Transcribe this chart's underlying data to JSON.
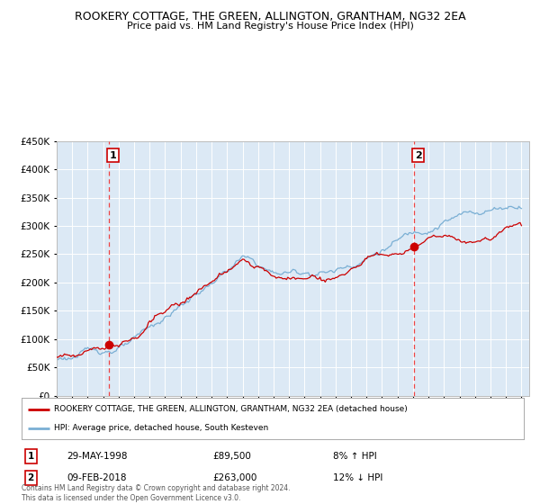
{
  "title": "ROOKERY COTTAGE, THE GREEN, ALLINGTON, GRANTHAM, NG32 2EA",
  "subtitle": "Price paid vs. HM Land Registry's House Price Index (HPI)",
  "bg_color": "#dce9f5",
  "fig_bg_color": "#ffffff",
  "red_line_color": "#cc0000",
  "blue_line_color": "#7aafd4",
  "dashed_line_color": "#ee4444",
  "dot_color": "#cc0000",
  "ylim": [
    0,
    450000
  ],
  "yticks": [
    0,
    50000,
    100000,
    150000,
    200000,
    250000,
    300000,
    350000,
    400000,
    450000
  ],
  "ytick_labels": [
    "£0",
    "£50K",
    "£100K",
    "£150K",
    "£200K",
    "£250K",
    "£300K",
    "£350K",
    "£400K",
    "£450K"
  ],
  "x_start_year": 1995,
  "x_end_year": 2025,
  "sale1_year": 1998.38,
  "sale1_price": 89500,
  "sale2_year": 2018.09,
  "sale2_price": 263000,
  "legend_house": "ROOKERY COTTAGE, THE GREEN, ALLINGTON, GRANTHAM, NG32 2EA (detached house)",
  "legend_hpi": "HPI: Average price, detached house, South Kesteven",
  "ann1_label": "1",
  "ann2_label": "2",
  "ann1_text": "29-MAY-1998",
  "ann1_price": "£89,500",
  "ann1_hpi": "8% ↑ HPI",
  "ann2_text": "09-FEB-2018",
  "ann2_price": "£263,000",
  "ann2_hpi": "12% ↓ HPI",
  "footer": "Contains HM Land Registry data © Crown copyright and database right 2024.\nThis data is licensed under the Open Government Licence v3.0."
}
